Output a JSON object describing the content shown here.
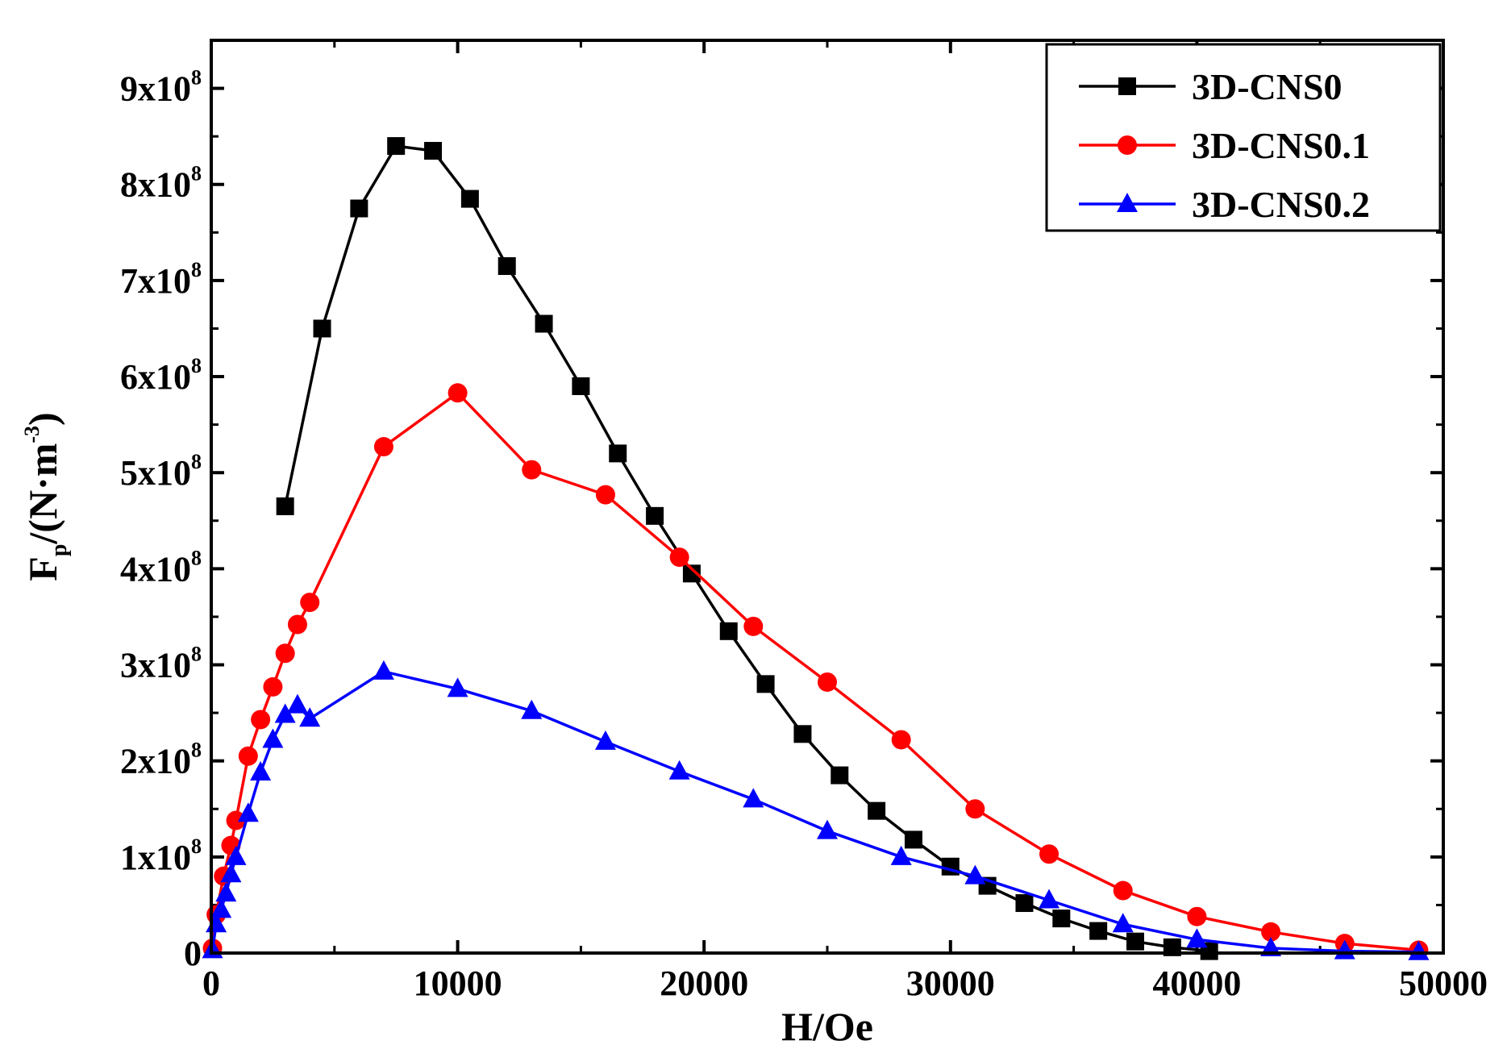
{
  "chart_data": {
    "type": "line",
    "title": "",
    "xlabel": "H/Oe",
    "ylabel": {
      "main": "F",
      "subscript": "p",
      "unit_prefix": "/(N·m",
      "unit_exponent": "-3",
      "unit_suffix": ")"
    },
    "xlim": [
      0,
      50000
    ],
    "ylim": [
      0,
      950000000
    ],
    "x_ticks": [
      {
        "value": 0,
        "label": "0"
      },
      {
        "value": 10000,
        "label": "10000"
      },
      {
        "value": 20000,
        "label": "20000"
      },
      {
        "value": 30000,
        "label": "30000"
      },
      {
        "value": 40000,
        "label": "40000"
      },
      {
        "value": 50000,
        "label": "50000"
      }
    ],
    "y_ticks": [
      {
        "value": 0,
        "mantissa": "0",
        "exponent": ""
      },
      {
        "value": 100000000,
        "mantissa": "1x10",
        "exponent": "8"
      },
      {
        "value": 200000000,
        "mantissa": "2x10",
        "exponent": "8"
      },
      {
        "value": 300000000,
        "mantissa": "3x10",
        "exponent": "8"
      },
      {
        "value": 400000000,
        "mantissa": "4x10",
        "exponent": "8"
      },
      {
        "value": 500000000,
        "mantissa": "5x10",
        "exponent": "8"
      },
      {
        "value": 600000000,
        "mantissa": "6x10",
        "exponent": "8"
      },
      {
        "value": 700000000,
        "mantissa": "7x10",
        "exponent": "8"
      },
      {
        "value": 800000000,
        "mantissa": "8x10",
        "exponent": "8"
      },
      {
        "value": 900000000,
        "mantissa": "9x10",
        "exponent": "8"
      }
    ],
    "legend_position": "top-right",
    "series": [
      {
        "name": "3D-CNS0",
        "color": "#000000",
        "marker": "square",
        "points": [
          [
            3000,
            465000000
          ],
          [
            4500,
            650000000
          ],
          [
            6000,
            775000000
          ],
          [
            7500,
            840000000
          ],
          [
            9000,
            835000000
          ],
          [
            10500,
            785000000
          ],
          [
            12000,
            715000000
          ],
          [
            13500,
            655000000
          ],
          [
            15000,
            590000000
          ],
          [
            16500,
            520000000
          ],
          [
            18000,
            455000000
          ],
          [
            19500,
            395000000
          ],
          [
            21000,
            335000000
          ],
          [
            22500,
            280000000
          ],
          [
            24000,
            228000000
          ],
          [
            25500,
            185000000
          ],
          [
            27000,
            148000000
          ],
          [
            28500,
            118000000
          ],
          [
            30000,
            90000000
          ],
          [
            31500,
            70000000
          ],
          [
            33000,
            52000000
          ],
          [
            34500,
            36000000
          ],
          [
            36000,
            23000000
          ],
          [
            37500,
            12000000
          ],
          [
            39000,
            6000000
          ],
          [
            40500,
            2000000
          ]
        ]
      },
      {
        "name": "3D-CNS0.1",
        "color": "#ff0000",
        "marker": "circle",
        "points": [
          [
            50,
            5000000
          ],
          [
            200,
            40000000
          ],
          [
            500,
            80000000
          ],
          [
            800,
            112000000
          ],
          [
            1000,
            138000000
          ],
          [
            1500,
            205000000
          ],
          [
            2000,
            243000000
          ],
          [
            2500,
            277000000
          ],
          [
            3000,
            312000000
          ],
          [
            3500,
            342000000
          ],
          [
            4000,
            365000000
          ],
          [
            7000,
            527000000
          ],
          [
            10000,
            583000000
          ],
          [
            13000,
            503000000
          ],
          [
            16000,
            477000000
          ],
          [
            19000,
            412000000
          ],
          [
            22000,
            340000000
          ],
          [
            25000,
            282000000
          ],
          [
            28000,
            222000000
          ],
          [
            31000,
            150000000
          ],
          [
            34000,
            103000000
          ],
          [
            37000,
            65000000
          ],
          [
            40000,
            38000000
          ],
          [
            43000,
            22000000
          ],
          [
            46000,
            10000000
          ],
          [
            49000,
            3000000
          ]
        ]
      },
      {
        "name": "3D-CNS0.2",
        "color": "#0000ff",
        "marker": "triangle",
        "points": [
          [
            50,
            3000000
          ],
          [
            200,
            30000000
          ],
          [
            400,
            45000000
          ],
          [
            600,
            62000000
          ],
          [
            800,
            82000000
          ],
          [
            1000,
            100000000
          ],
          [
            1500,
            145000000
          ],
          [
            2000,
            188000000
          ],
          [
            2500,
            222000000
          ],
          [
            3000,
            248000000
          ],
          [
            3500,
            258000000
          ],
          [
            4000,
            244000000
          ],
          [
            7000,
            293000000
          ],
          [
            10000,
            275000000
          ],
          [
            13000,
            252000000
          ],
          [
            16000,
            220000000
          ],
          [
            19000,
            189000000
          ],
          [
            22000,
            160000000
          ],
          [
            25000,
            127000000
          ],
          [
            28000,
            100000000
          ],
          [
            31000,
            80000000
          ],
          [
            34000,
            55000000
          ],
          [
            37000,
            30000000
          ],
          [
            40000,
            14000000
          ],
          [
            43000,
            5000000
          ],
          [
            46000,
            2000000
          ],
          [
            49000,
            1000000
          ]
        ]
      }
    ]
  }
}
